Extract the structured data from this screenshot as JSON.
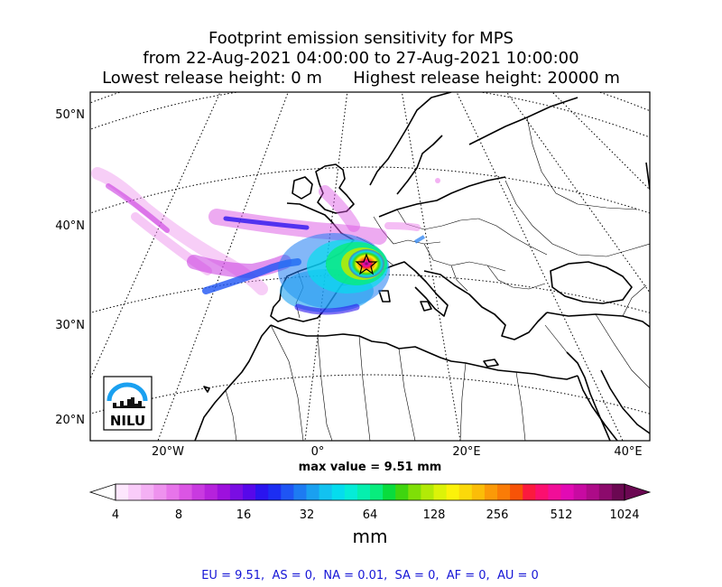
{
  "title": {
    "line1": "Footprint emission sensitivity for MPS",
    "line2": "from 22-Aug-2021 04:00:00 to 27-Aug-2021 10:00:00",
    "line3": "Lowest release height: 0 m      Highest release height: 20000 m"
  },
  "map": {
    "lat_labels": [
      "50°N",
      "40°N",
      "30°N",
      "20°N"
    ],
    "lon_labels": [
      "20°W",
      "0°",
      "20°E",
      "40°E"
    ],
    "max_value": "max value = 9.51 mm",
    "logo_text": "NILU"
  },
  "colorbar": {
    "ticks": [
      "4",
      "8",
      "16",
      "32",
      "64",
      "128",
      "256",
      "512",
      "1024"
    ],
    "unit": "mm",
    "colors": [
      "#fde7fd",
      "#f9ccf9",
      "#f4b0f4",
      "#ee92ee",
      "#e774ea",
      "#db55e4",
      "#c93ae0",
      "#b622dc",
      "#9d10dd",
      "#7a0de3",
      "#5708ea",
      "#2a14ef",
      "#1c2ef2",
      "#1f55f4",
      "#1d7bf2",
      "#1aa0f0",
      "#12c2f0",
      "#05dcee",
      "#05ecd8",
      "#05efae",
      "#08ec7d",
      "#09dc3d",
      "#3fd50f",
      "#7fdf07",
      "#b2ea07",
      "#dcf308",
      "#fcf20a",
      "#fbd90a",
      "#fbbd08",
      "#fb9a08",
      "#fa7c07",
      "#f75307",
      "#fb1a3e",
      "#fb0f6f",
      "#f10e98",
      "#e20ab4",
      "#c80aa2",
      "#ad0b88",
      "#8c0a6c",
      "#6b0852"
    ]
  },
  "summary": "EU = 9.51,  AS = 0,  NA = 0.01,  SA = 0,  AF = 0,  AU = 0"
}
